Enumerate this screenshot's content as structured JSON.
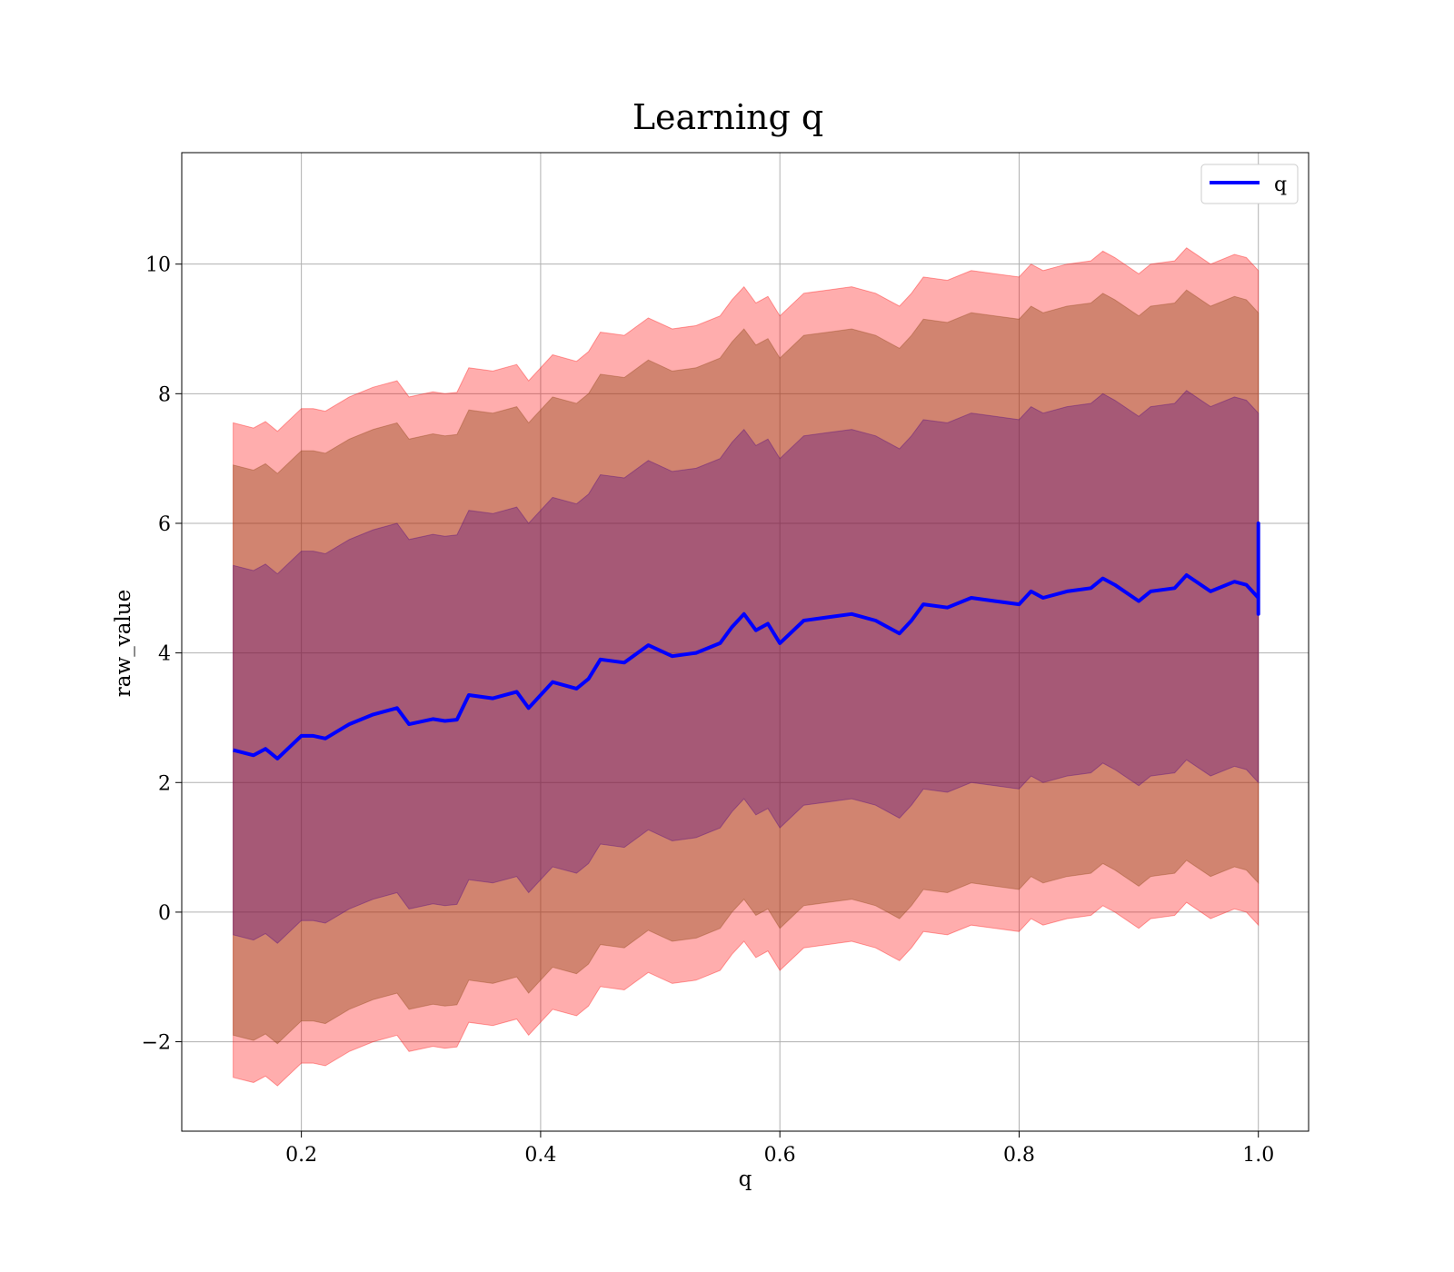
{
  "chart_data": {
    "type": "line",
    "title": "Learning q",
    "xlabel": "q",
    "ylabel": "raw_value",
    "xlim": [
      0.1,
      1.042
    ],
    "ylim": [
      -3.38,
      11.72
    ],
    "x_ticks": [
      {
        "value": 0.2,
        "label": "0.2"
      },
      {
        "value": 0.4,
        "label": "0.4"
      },
      {
        "value": 0.6,
        "label": "0.6"
      },
      {
        "value": 0.8,
        "label": "0.8"
      },
      {
        "value": 1.0,
        "label": "1.0"
      }
    ],
    "y_ticks": [
      {
        "value": -2,
        "label": "−2"
      },
      {
        "value": 0,
        "label": "0"
      },
      {
        "value": 2,
        "label": "2"
      },
      {
        "value": 4,
        "label": "4"
      },
      {
        "value": 6,
        "label": "6"
      },
      {
        "value": 8,
        "label": "8"
      },
      {
        "value": 10,
        "label": "10"
      }
    ],
    "grid": true,
    "legend": {
      "position": "top-right",
      "entries": [
        "q"
      ]
    },
    "x": [
      0.143,
      0.16,
      0.17,
      0.18,
      0.2,
      0.21,
      0.22,
      0.24,
      0.26,
      0.28,
      0.29,
      0.31,
      0.32,
      0.33,
      0.34,
      0.36,
      0.38,
      0.39,
      0.41,
      0.43,
      0.44,
      0.45,
      0.47,
      0.49,
      0.51,
      0.53,
      0.55,
      0.56,
      0.57,
      0.58,
      0.59,
      0.6,
      0.62,
      0.64,
      0.66,
      0.68,
      0.7,
      0.71,
      0.72,
      0.74,
      0.76,
      0.78,
      0.8,
      0.81,
      0.82,
      0.84,
      0.86,
      0.87,
      0.88,
      0.9,
      0.91,
      0.93,
      0.94,
      0.96,
      0.98,
      0.99,
      1.0
    ],
    "series": [
      {
        "name": "q",
        "color": "#0000ff",
        "values": [
          2.5,
          2.42,
          2.52,
          2.37,
          2.72,
          2.72,
          2.68,
          2.9,
          3.05,
          3.15,
          2.9,
          2.98,
          2.95,
          2.97,
          3.35,
          3.3,
          3.4,
          3.15,
          3.55,
          3.45,
          3.6,
          3.9,
          3.85,
          4.12,
          3.95,
          4.0,
          4.15,
          4.4,
          4.6,
          4.35,
          4.45,
          4.15,
          4.5,
          4.55,
          4.6,
          4.5,
          4.3,
          4.5,
          4.75,
          4.7,
          4.85,
          4.8,
          4.75,
          4.95,
          4.85,
          4.95,
          5.0,
          5.15,
          5.05,
          4.8,
          4.95,
          5.0,
          5.2,
          4.95,
          5.1,
          5.05,
          4.85
        ],
        "end_spike": [
          6.0,
          4.6
        ]
      }
    ],
    "bands": [
      {
        "name": "",
        "color": "#ff0000",
        "opacity": 0.32,
        "offset": 5.05
      },
      {
        "name": "",
        "color": "#8b4513",
        "opacity": 0.4,
        "offset": 4.4
      },
      {
        "name": "",
        "color": "#4b0082",
        "opacity": 0.32,
        "offset": 2.85
      }
    ]
  }
}
